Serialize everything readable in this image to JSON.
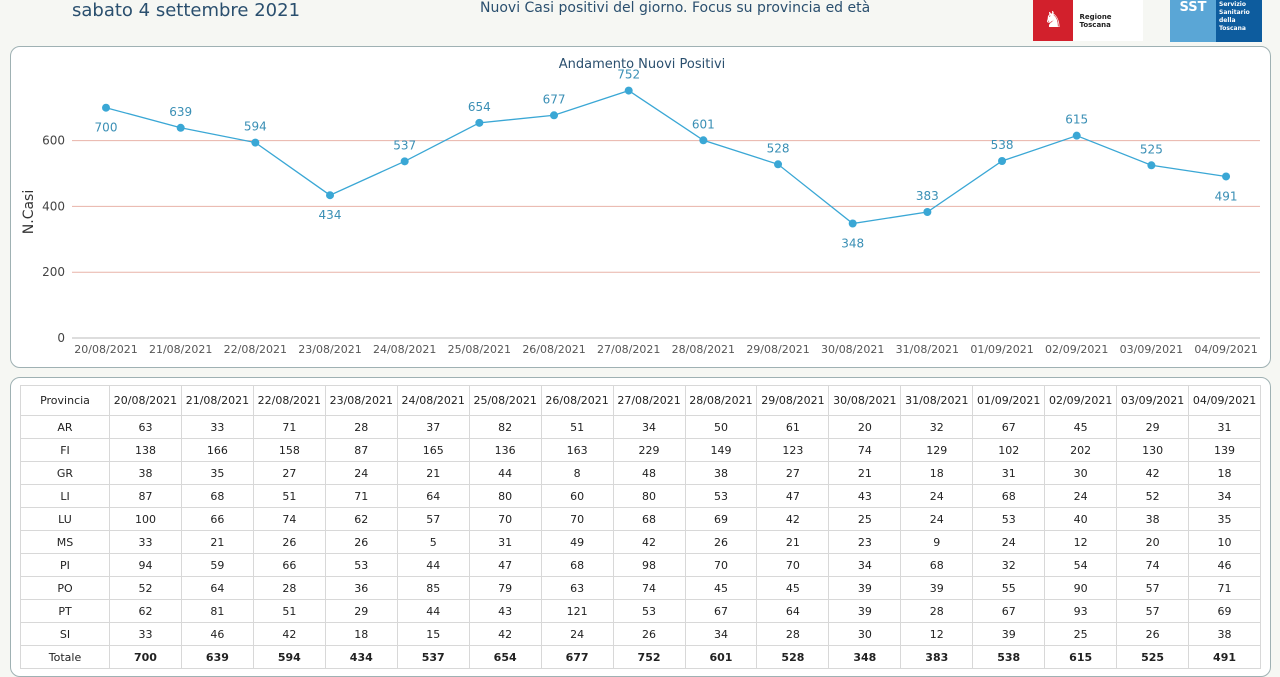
{
  "header": {
    "date": "sabato 4 settembre 2021",
    "subtitle": "Nuovi Casi positivi del giorno. Focus su provincia ed età",
    "logo_region": "Regione Toscana",
    "logo_sst_abbr": "SST",
    "logo_sst_lines": [
      "Servizio",
      "Sanitario",
      "della",
      "Toscana"
    ]
  },
  "colors": {
    "line": "#3aa7d5",
    "grid": "#e8b3a8",
    "point_label": "#3a8fb5"
  },
  "chart_data": {
    "type": "line",
    "title": "Andamento Nuovi Positivi",
    "ylabel": "N.Casi",
    "xlabel": "",
    "ylim": [
      0,
      800
    ],
    "yticks": [
      0,
      200,
      400,
      600
    ],
    "grid": true,
    "categories": [
      "20/08/2021",
      "21/08/2021",
      "22/08/2021",
      "23/08/2021",
      "24/08/2021",
      "25/08/2021",
      "26/08/2021",
      "27/08/2021",
      "28/08/2021",
      "29/08/2021",
      "30/08/2021",
      "31/08/2021",
      "01/09/2021",
      "02/09/2021",
      "03/09/2021",
      "04/09/2021"
    ],
    "series": [
      {
        "name": "Nuovi Positivi",
        "values": [
          700,
          639,
          594,
          434,
          537,
          654,
          677,
          752,
          601,
          528,
          348,
          383,
          538,
          615,
          525,
          491
        ]
      }
    ]
  },
  "table": {
    "header_label": "Provincia",
    "rows": [
      {
        "name": "AR",
        "values": [
          63,
          33,
          71,
          28,
          37,
          82,
          51,
          34,
          50,
          61,
          20,
          32,
          67,
          45,
          29,
          31
        ]
      },
      {
        "name": "FI",
        "values": [
          138,
          166,
          158,
          87,
          165,
          136,
          163,
          229,
          149,
          123,
          74,
          129,
          102,
          202,
          130,
          139
        ]
      },
      {
        "name": "GR",
        "values": [
          38,
          35,
          27,
          24,
          21,
          44,
          8,
          48,
          38,
          27,
          21,
          18,
          31,
          30,
          42,
          18
        ]
      },
      {
        "name": "LI",
        "values": [
          87,
          68,
          51,
          71,
          64,
          80,
          60,
          80,
          53,
          47,
          43,
          24,
          68,
          24,
          52,
          34
        ]
      },
      {
        "name": "LU",
        "values": [
          100,
          66,
          74,
          62,
          57,
          70,
          70,
          68,
          69,
          42,
          25,
          24,
          53,
          40,
          38,
          35
        ]
      },
      {
        "name": "MS",
        "values": [
          33,
          21,
          26,
          26,
          5,
          31,
          49,
          42,
          26,
          21,
          23,
          9,
          24,
          12,
          20,
          10
        ]
      },
      {
        "name": "PI",
        "values": [
          94,
          59,
          66,
          53,
          44,
          47,
          68,
          98,
          70,
          70,
          34,
          68,
          32,
          54,
          74,
          46
        ]
      },
      {
        "name": "PO",
        "values": [
          52,
          64,
          28,
          36,
          85,
          79,
          63,
          74,
          45,
          45,
          39,
          39,
          55,
          90,
          57,
          71
        ]
      },
      {
        "name": "PT",
        "values": [
          62,
          81,
          51,
          29,
          44,
          43,
          121,
          53,
          67,
          64,
          39,
          28,
          67,
          93,
          57,
          69
        ]
      },
      {
        "name": "SI",
        "values": [
          33,
          46,
          42,
          18,
          15,
          42,
          24,
          26,
          34,
          28,
          30,
          12,
          39,
          25,
          26,
          38
        ]
      }
    ],
    "total": {
      "name": "Totale",
      "values": [
        700,
        639,
        594,
        434,
        537,
        654,
        677,
        752,
        601,
        528,
        348,
        383,
        538,
        615,
        525,
        491
      ]
    }
  }
}
